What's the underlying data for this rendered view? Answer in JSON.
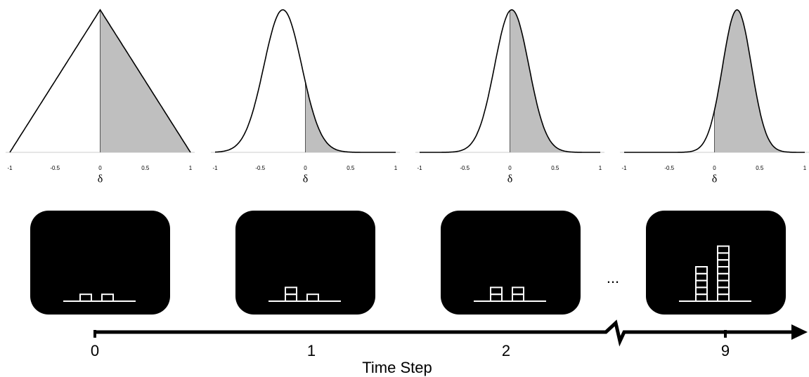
{
  "plots": [
    {
      "xticks": [
        "-1",
        "-0.5",
        "0",
        "0.5",
        "1"
      ],
      "xlabel": "δ"
    },
    {
      "xticks": [
        "-1",
        "-0.5",
        "0",
        "0.5",
        "1"
      ],
      "xlabel": "δ"
    },
    {
      "xticks": [
        "-1",
        "-0.5",
        "0",
        "0.5",
        "1"
      ],
      "xlabel": "δ"
    },
    {
      "xticks": [
        "-1",
        "-0.5",
        "0",
        "0.5",
        "1"
      ],
      "xlabel": "δ"
    }
  ],
  "ellipsis": "...",
  "timeline": {
    "steps": [
      "0",
      "1",
      "2",
      "9"
    ],
    "label": "Time Step"
  }
}
